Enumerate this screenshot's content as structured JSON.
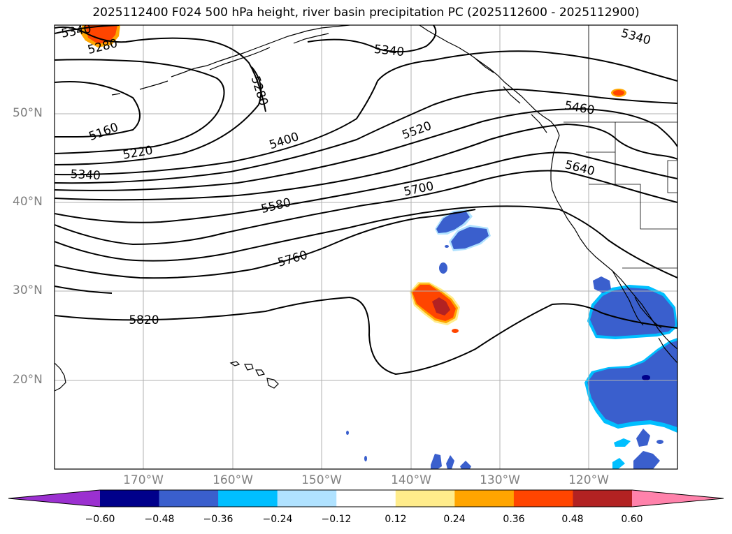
{
  "title": "2025112400 F024 500 hPa height, river basin precipitation PC (2025112600 - 2025112900)",
  "map": {
    "lat_labels": [
      "50°N",
      "40°N",
      "30°N",
      "20°N"
    ],
    "lon_labels": [
      "170°W",
      "160°W",
      "150°W",
      "140°W",
      "130°W",
      "120°W"
    ],
    "contour_labels": [
      "5340",
      "5280",
      "5340",
      "5280",
      "5340",
      "5460",
      "5160",
      "5220",
      "5400",
      "5520",
      "5340",
      "5640",
      "5580",
      "5700",
      "5760",
      "5820"
    ],
    "colors": {
      "contour": "#000000",
      "grid": "#b0b0b0",
      "coast": "#000000"
    }
  },
  "colorbar": {
    "ticks": [
      "−0.60",
      "−0.48",
      "−0.36",
      "−0.24",
      "−0.12",
      "0.12",
      "0.24",
      "0.36",
      "0.48",
      "0.60"
    ],
    "colors": [
      "#9b30d0",
      "#00008b",
      "#3a5fcd",
      "#00bfff",
      "#b0e2ff",
      "#ffffff",
      "#ffec8b",
      "#ffa500",
      "#ff4500",
      "#b22222",
      "#ff82ab"
    ]
  }
}
